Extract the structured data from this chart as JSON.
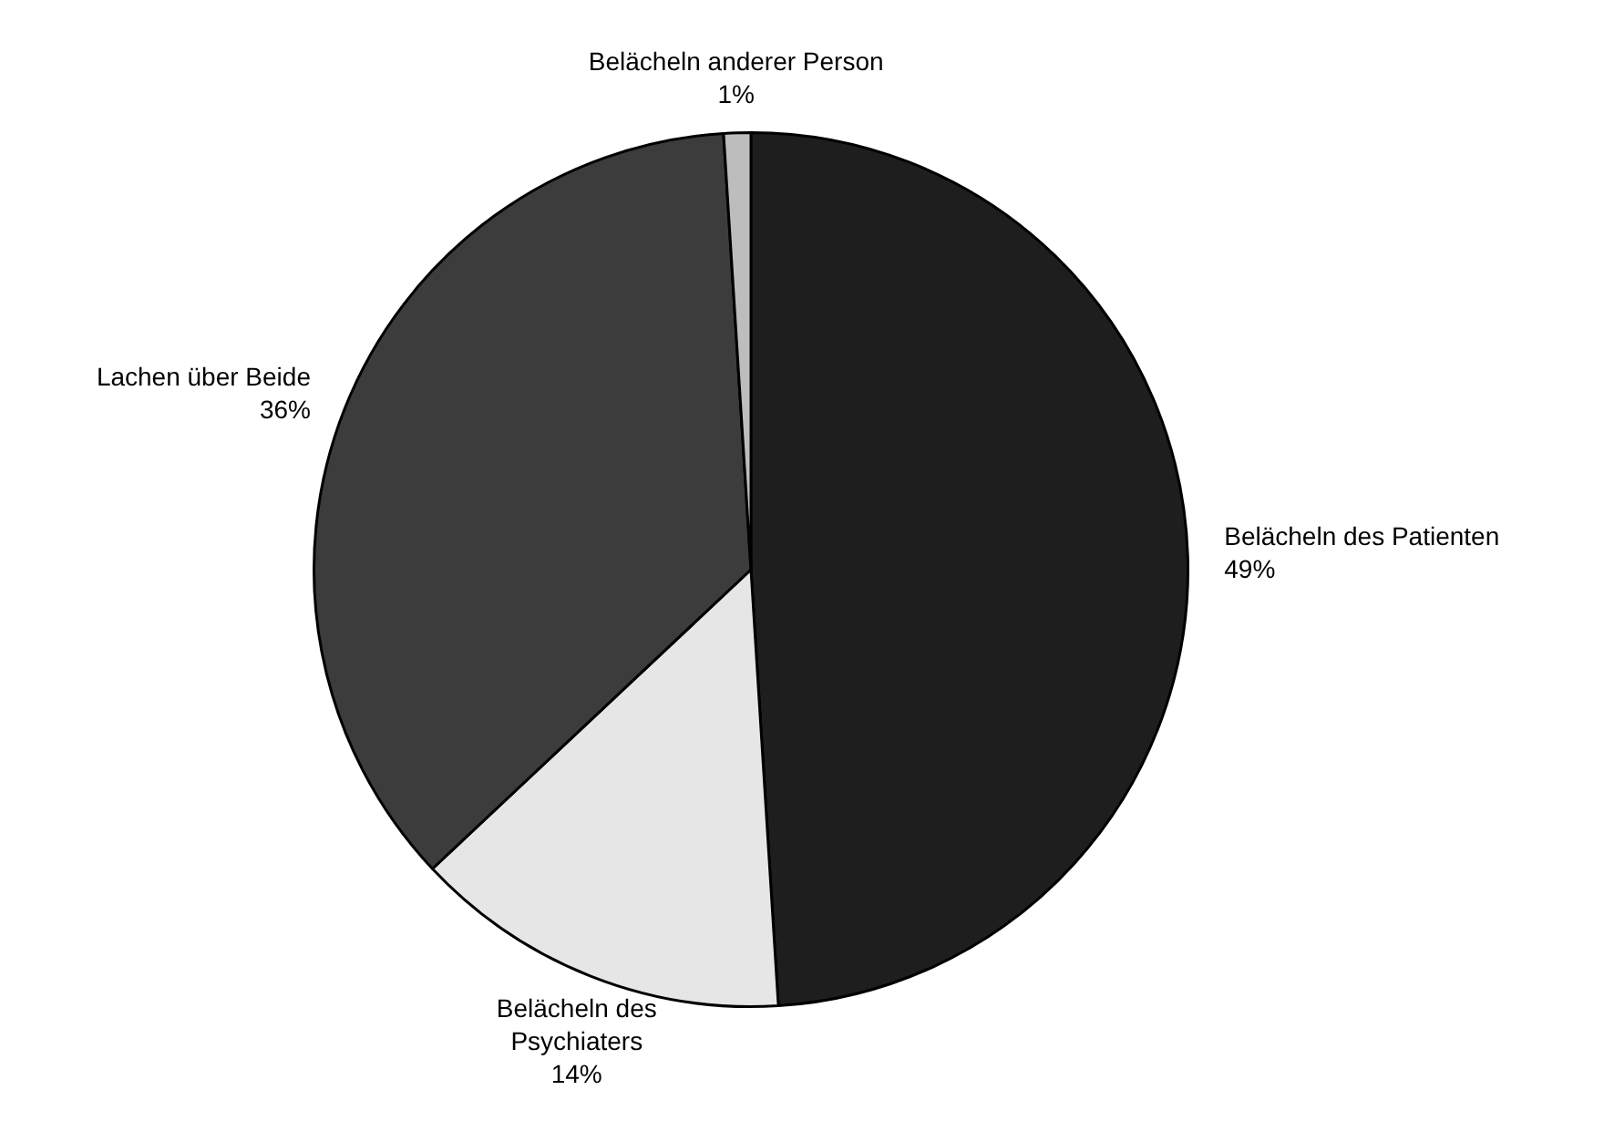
{
  "chart_data": {
    "type": "pie",
    "categories": [
      "Belächeln des Patienten",
      "Belächeln des\nPsychiaters",
      "Lachen über Beide",
      "Belächeln anderer Person"
    ],
    "values": [
      49,
      14,
      36,
      1
    ],
    "value_labels": [
      "49%",
      "14%",
      "36%",
      "1%"
    ],
    "colors": [
      "#1e1e1e",
      "#e6e6e6",
      "#3c3c3c",
      "#bdbdbd"
    ]
  }
}
